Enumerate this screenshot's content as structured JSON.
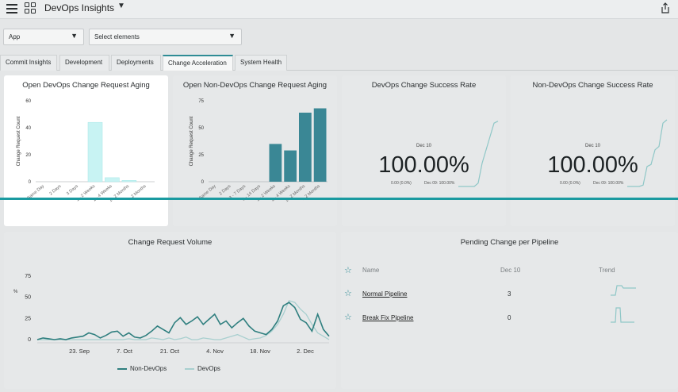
{
  "header": {
    "title": "DevOps Insights",
    "menu_icon": "hamburger-icon",
    "apps_icon": "grid-icon",
    "share_icon": "share-icon"
  },
  "filters": {
    "app_select": "App",
    "elements_select": "Select elements"
  },
  "tabs": [
    {
      "label": "Commit Insights"
    },
    {
      "label": "Development"
    },
    {
      "label": "Deployments"
    },
    {
      "label": "Change Acceleration",
      "active": true
    },
    {
      "label": "System Health"
    }
  ],
  "aging1": {
    "title": "Open DevOps Change Request Aging",
    "chart_data": {
      "type": "bar",
      "title": "Open DevOps Change Request Aging",
      "ylabel": "Change Request Count",
      "ylim": [
        0,
        60
      ],
      "yticks": [
        "0",
        "20",
        "40",
        "60"
      ],
      "categories": [
        "Same Day",
        "2 Days",
        "3 Days",
        "1 - 2 Weeks",
        "2 - 4 Weeks",
        "1 - 2 Months",
        "> 2 Months"
      ],
      "values": [
        0,
        0,
        0,
        44,
        3,
        1,
        0
      ],
      "bar_color": "#c8f3f3"
    }
  },
  "aging2": {
    "title": "Open Non-DevOps Change Request Aging",
    "chart_data": {
      "type": "bar",
      "title": "Open Non-DevOps Change Request Aging",
      "ylabel": "Change Request Count",
      "ylim": [
        0,
        75
      ],
      "yticks": [
        "0",
        "25",
        "50",
        "75"
      ],
      "categories": [
        "Same Day",
        "2 Days",
        "3 - 7 Days",
        "8 - 14 Days",
        "1 - 2 Weeks",
        "2 - 4 Weeks",
        "1 - 2 Months",
        "> 2 Months"
      ],
      "values": [
        0,
        0,
        0,
        0,
        35,
        29,
        64,
        68
      ],
      "bar_color": "#3a8795"
    }
  },
  "success_devops": {
    "title": "DevOps Change Success Rate",
    "date": "Dec 10",
    "value": "100.00%",
    "delta": "0.00 (0.0%)",
    "prev": "Dec 09: 100.00%",
    "sparkline": [
      0,
      0,
      0,
      0,
      0,
      0.05,
      0.35,
      0.55,
      0.75,
      0.95,
      0.98
    ]
  },
  "success_nondevops": {
    "title": "Non-DevOps Change Success Rate",
    "date": "Dec 10",
    "value": "100.00%",
    "delta": "0.00 (0.0%)",
    "prev": "Dec 09: 100.00%",
    "sparkline": [
      0,
      0,
      0,
      0,
      0.02,
      0.3,
      0.33,
      0.55,
      0.6,
      0.95,
      1
    ]
  },
  "volume": {
    "title": "Change Request Volume",
    "chart_data": {
      "type": "line",
      "title": "Change Request Volume",
      "ylabel": "%",
      "ylim": [
        0,
        75
      ],
      "yticks": [
        "0",
        "25",
        "50",
        "75"
      ],
      "xticks": [
        "23. Sep",
        "7. Oct",
        "21. Oct",
        "4. Nov",
        "18. Nov",
        "2. Dec"
      ],
      "series": [
        {
          "name": "Non-DevOps",
          "color": "#2f7f7f",
          "values": [
            0,
            2,
            1,
            0,
            1,
            0,
            2,
            3,
            4,
            8,
            6,
            2,
            5,
            9,
            10,
            4,
            8,
            3,
            2,
            5,
            10,
            16,
            12,
            8,
            20,
            26,
            18,
            22,
            27,
            18,
            24,
            30,
            18,
            22,
            14,
            20,
            25,
            16,
            10,
            8,
            6,
            12,
            22,
            40,
            44,
            38,
            24,
            20,
            10,
            30,
            12,
            4
          ]
        },
        {
          "name": "DevOps",
          "color": "#a8cfcf",
          "values": [
            0,
            0,
            0,
            0,
            0,
            0,
            0,
            0,
            0,
            0,
            0,
            0,
            0,
            0,
            0,
            0,
            1,
            0,
            0,
            0,
            2,
            1,
            0,
            2,
            0,
            1,
            3,
            0,
            0,
            2,
            1,
            0,
            0,
            2,
            4,
            6,
            3,
            0,
            1,
            2,
            5,
            10,
            18,
            30,
            46,
            44,
            36,
            30,
            18,
            8,
            4,
            0
          ]
        }
      ]
    }
  },
  "pipeline": {
    "title": "Pending Change per Pipeline",
    "headers": {
      "name": "Name",
      "date": "Dec 10",
      "trend": "Trend"
    },
    "rows": [
      {
        "name": "Normal Pipeline",
        "value": "3"
      },
      {
        "name": "Break Fix Pipeline",
        "value": "0"
      }
    ]
  }
}
